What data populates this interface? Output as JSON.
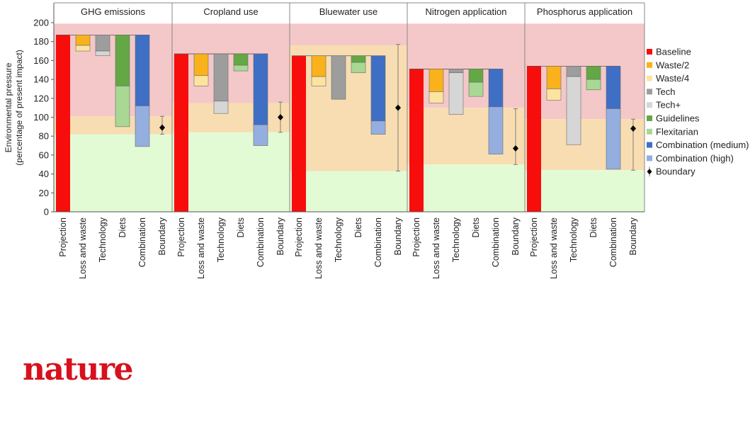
{
  "chart_data": {
    "type": "bar",
    "ylabel": "Environmental pressure",
    "ylabel2": "(percentage of present impact)",
    "ylim": [
      0,
      200
    ],
    "yticks": [
      0,
      20,
      40,
      60,
      80,
      100,
      120,
      140,
      160,
      180,
      200
    ],
    "categories": [
      "Projection",
      "Loss and waste",
      "Technology",
      "Diets",
      "Combination",
      "Boundary"
    ],
    "panels": [
      {
        "title": "GHG emissions",
        "zones": {
          "green_to": 82,
          "orange_to": 101,
          "red_to": 199
        },
        "baseline": 187,
        "bars": [
          {
            "category": "Loss and waste",
            "segments": [
              {
                "from": 187,
                "to": 176,
                "series": "Waste/2"
              },
              {
                "from": 176,
                "to": 170,
                "series": "Waste/4"
              }
            ]
          },
          {
            "category": "Technology",
            "segments": [
              {
                "from": 187,
                "to": 170,
                "series": "Tech"
              },
              {
                "from": 170,
                "to": 165,
                "series": "Tech+"
              }
            ]
          },
          {
            "category": "Diets",
            "segments": [
              {
                "from": 187,
                "to": 133,
                "series": "Guidelines"
              },
              {
                "from": 133,
                "to": 90,
                "series": "Flexitarian"
              }
            ]
          },
          {
            "category": "Combination",
            "segments": [
              {
                "from": 187,
                "to": 112,
                "series": "Combination (medium)"
              },
              {
                "from": 112,
                "to": 69,
                "series": "Combination (high)"
              }
            ]
          }
        ],
        "boundary": {
          "value": 89,
          "low": 82,
          "high": 101
        }
      },
      {
        "title": "Cropland use",
        "zones": {
          "green_to": 84,
          "orange_to": 115,
          "red_to": 199
        },
        "baseline": 167,
        "bars": [
          {
            "category": "Loss and waste",
            "segments": [
              {
                "from": 167,
                "to": 144,
                "series": "Waste/2"
              },
              {
                "from": 144,
                "to": 133,
                "series": "Waste/4"
              }
            ]
          },
          {
            "category": "Technology",
            "segments": [
              {
                "from": 167,
                "to": 117,
                "series": "Tech"
              },
              {
                "from": 117,
                "to": 104,
                "series": "Tech+"
              }
            ]
          },
          {
            "category": "Diets",
            "segments": [
              {
                "from": 167,
                "to": 155,
                "series": "Guidelines"
              },
              {
                "from": 155,
                "to": 149,
                "series": "Flexitarian"
              }
            ]
          },
          {
            "category": "Combination",
            "segments": [
              {
                "from": 167,
                "to": 92,
                "series": "Combination (medium)"
              },
              {
                "from": 92,
                "to": 70,
                "series": "Combination (high)"
              }
            ]
          }
        ],
        "boundary": {
          "value": 100,
          "low": 84,
          "high": 116
        }
      },
      {
        "title": "Bluewater use",
        "zones": {
          "green_to": 43,
          "orange_to": 176,
          "red_to": 199
        },
        "baseline": 165,
        "bars": [
          {
            "category": "Loss and waste",
            "segments": [
              {
                "from": 165,
                "to": 143,
                "series": "Waste/2"
              },
              {
                "from": 143,
                "to": 133,
                "series": "Waste/4"
              }
            ]
          },
          {
            "category": "Technology",
            "segments": [
              {
                "from": 165,
                "to": 119,
                "series": "Tech"
              }
            ]
          },
          {
            "category": "Diets",
            "segments": [
              {
                "from": 165,
                "to": 158,
                "series": "Guidelines"
              },
              {
                "from": 158,
                "to": 147,
                "series": "Flexitarian"
              }
            ]
          },
          {
            "category": "Combination",
            "segments": [
              {
                "from": 165,
                "to": 96,
                "series": "Combination (medium)"
              },
              {
                "from": 96,
                "to": 82,
                "series": "Combination (high)"
              }
            ]
          }
        ],
        "boundary": {
          "value": 110,
          "low": 43,
          "high": 177
        }
      },
      {
        "title": "Nitrogen application",
        "zones": {
          "green_to": 50,
          "orange_to": 110,
          "red_to": 199
        },
        "baseline": 151,
        "bars": [
          {
            "category": "Loss and waste",
            "segments": [
              {
                "from": 151,
                "to": 127,
                "series": "Waste/2"
              },
              {
                "from": 127,
                "to": 115,
                "series": "Waste/4"
              }
            ]
          },
          {
            "category": "Technology",
            "segments": [
              {
                "from": 151,
                "to": 147,
                "series": "Tech"
              },
              {
                "from": 147,
                "to": 103,
                "series": "Tech+"
              }
            ]
          },
          {
            "category": "Diets",
            "segments": [
              {
                "from": 151,
                "to": 137,
                "series": "Guidelines"
              },
              {
                "from": 137,
                "to": 122,
                "series": "Flexitarian"
              }
            ]
          },
          {
            "category": "Combination",
            "segments": [
              {
                "from": 151,
                "to": 111,
                "series": "Combination (medium)"
              },
              {
                "from": 111,
                "to": 61,
                "series": "Combination (high)"
              }
            ]
          }
        ],
        "boundary": {
          "value": 67,
          "low": 50,
          "high": 109
        }
      },
      {
        "title": "Phosphorus application",
        "zones": {
          "green_to": 44,
          "orange_to": 98,
          "red_to": 199
        },
        "baseline": 154,
        "bars": [
          {
            "category": "Loss and waste",
            "segments": [
              {
                "from": 154,
                "to": 130,
                "series": "Waste/2"
              },
              {
                "from": 130,
                "to": 118,
                "series": "Waste/4"
              }
            ]
          },
          {
            "category": "Technology",
            "segments": [
              {
                "from": 154,
                "to": 143,
                "series": "Tech"
              },
              {
                "from": 143,
                "to": 71,
                "series": "Tech+"
              }
            ]
          },
          {
            "category": "Diets",
            "segments": [
              {
                "from": 154,
                "to": 140,
                "series": "Guidelines"
              },
              {
                "from": 140,
                "to": 129,
                "series": "Flexitarian"
              }
            ]
          },
          {
            "category": "Combination",
            "segments": [
              {
                "from": 154,
                "to": 109,
                "series": "Combination (medium)"
              },
              {
                "from": 109,
                "to": 45,
                "series": "Combination (high)"
              }
            ]
          }
        ],
        "boundary": {
          "value": 88,
          "low": 44,
          "high": 98
        }
      }
    ],
    "legend": [
      {
        "name": "Baseline",
        "color": "#f80d0d"
      },
      {
        "name": "Waste/2",
        "color": "#f9b21b"
      },
      {
        "name": "Waste/4",
        "color": "#fde3a0"
      },
      {
        "name": "Tech",
        "color": "#9d9d9d"
      },
      {
        "name": "Tech+",
        "color": "#d6d6d6"
      },
      {
        "name": "Guidelines",
        "color": "#63a844"
      },
      {
        "name": "Flexitarian",
        "color": "#a8d894"
      },
      {
        "name": "Combination (medium)",
        "color": "#3e6fc5"
      },
      {
        "name": "Combination (high)",
        "color": "#95aee0"
      },
      {
        "name": "Boundary",
        "marker": "diamond",
        "color": "#000000"
      }
    ],
    "legend_position": "right",
    "zone_colors": {
      "red": "#f4c8c8",
      "orange": "#f7ddb1",
      "green": "#e2fbd5"
    }
  },
  "brand": {
    "logo_text": "nature",
    "color": "#d7111d"
  }
}
